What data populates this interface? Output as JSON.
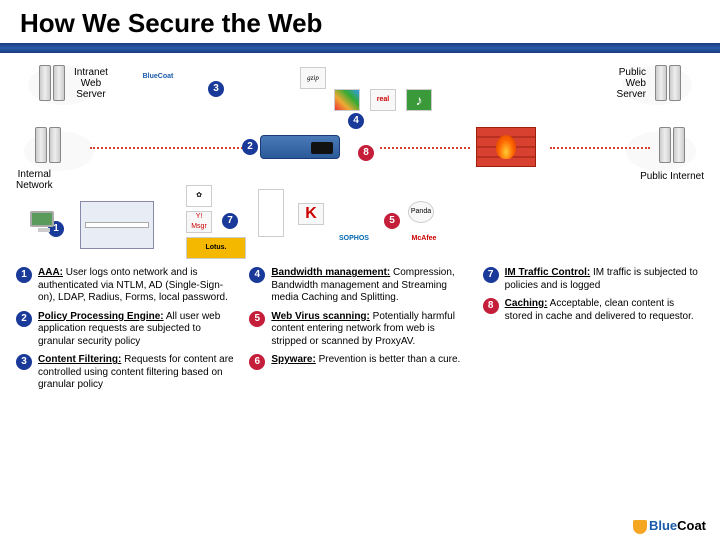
{
  "title": "How We Secure the Web",
  "labels": {
    "intranet": "Intranet\nWeb\nServer",
    "public_server": "Public\nWeb\nServer",
    "internal_net": "Internal\nNetwork",
    "public_net": "Public Internet"
  },
  "badges": {
    "b1": "1",
    "b2": "2",
    "b3": "3",
    "b4": "4",
    "b5": "5",
    "b6": "6",
    "b7": "7",
    "b8": "8"
  },
  "icons": {
    "gzip": "gzip",
    "winmedia": "WinMedia",
    "real": "real",
    "itunes": "♪",
    "yahoo": "Y! Msgr",
    "lotus": "Lotus.",
    "kaspersky": "K",
    "sophos": "SOPHOS",
    "mcafee": "McAfee",
    "panda": "Panda",
    "bluecoat_small": "BlueCoat"
  },
  "col1": [
    {
      "num": "1",
      "color": "blue",
      "bold": "AAA:",
      "body": " User logs onto network and is authenticated via NTLM, AD (Single-Sign-on), LDAP, Radius, Forms, local password."
    },
    {
      "num": "2",
      "color": "blue",
      "bold": "Policy Processing Engine:",
      "body": " All user web application requests are subjected to granular security policy"
    },
    {
      "num": "3",
      "color": "blue",
      "bold": "Content Filtering:",
      "body": " Requests for content are controlled using content filtering based on granular policy"
    }
  ],
  "col2": [
    {
      "num": "4",
      "color": "blue",
      "bold": "Bandwidth management:",
      "body": " Compression, Bandwidth management and Streaming media Caching and Splitting."
    },
    {
      "num": "5",
      "color": "red",
      "bold": "Web Virus scanning:",
      "body": " Potentially harmful content entering network from web is stripped or scanned by ProxyAV."
    },
    {
      "num": "6",
      "color": "red",
      "bold": "Spyware:",
      "body": " Prevention is better than a cure."
    }
  ],
  "col3": [
    {
      "num": "7",
      "color": "blue",
      "bold": "IM Traffic Control:",
      "body": " IM traffic is subjected to policies and is logged"
    },
    {
      "num": "8",
      "color": "red",
      "bold": "Caching:",
      "body": " Acceptable, clean content is stored in cache and delivered to requestor."
    }
  ],
  "footer": {
    "brand": "Blue",
    "shield": "●",
    "coat": "Coat"
  },
  "colors": {
    "badge_blue": "#1a3a9a",
    "badge_red": "#c41e3a",
    "titlebar_start": "#1a3a7a",
    "titlebar_mid": "#2a5aaa",
    "firewall_brick": "#d84030",
    "dotted": "#d84030"
  }
}
